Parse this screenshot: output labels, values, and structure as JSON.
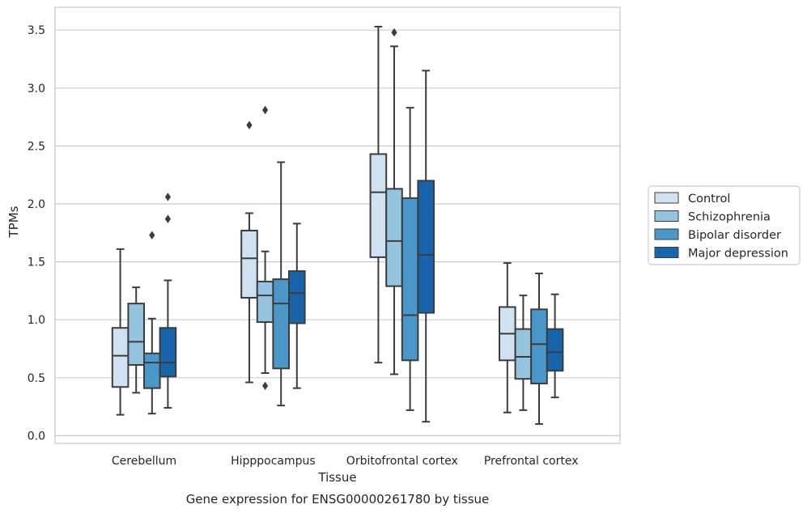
{
  "chart_data": {
    "type": "box",
    "title": "",
    "caption": "Gene expression for ENSG00000261780 by tissue",
    "xlabel": "Tissue",
    "ylabel": "TPMs",
    "ylim": [
      -0.06,
      3.7
    ],
    "yticks": [
      0.0,
      0.5,
      1.0,
      1.5,
      2.0,
      2.5,
      3.0,
      3.5
    ],
    "ytick_labels": [
      "0.0",
      "0.5",
      "1.0",
      "1.5",
      "2.0",
      "2.5",
      "3.0",
      "3.5"
    ],
    "grid": "horizontal",
    "legend_position": "right",
    "categories": [
      "Cerebellum",
      "Hipppocampus",
      "Orbitofrontal cortex",
      "Prefrontal cortex"
    ],
    "series": [
      {
        "name": "Control",
        "color": "#d0e1f2",
        "boxes": [
          {
            "whislo": 0.18,
            "q1": 0.42,
            "med": 0.69,
            "q3": 0.93,
            "whishi": 1.61,
            "fliers": []
          },
          {
            "whislo": 0.46,
            "q1": 1.19,
            "med": 1.53,
            "q3": 1.77,
            "whishi": 1.92,
            "fliers": [
              2.68
            ]
          },
          {
            "whislo": 0.63,
            "q1": 1.54,
            "med": 2.1,
            "q3": 2.43,
            "whishi": 3.53,
            "fliers": []
          },
          {
            "whislo": 0.2,
            "q1": 0.65,
            "med": 0.88,
            "q3": 1.11,
            "whishi": 1.49,
            "fliers": []
          }
        ]
      },
      {
        "name": "Schizophrenia",
        "color": "#94c4df",
        "boxes": [
          {
            "whislo": 0.37,
            "q1": 0.61,
            "med": 0.81,
            "q3": 1.14,
            "whishi": 1.28,
            "fliers": []
          },
          {
            "whislo": 0.54,
            "q1": 0.98,
            "med": 1.21,
            "q3": 1.33,
            "whishi": 1.59,
            "fliers": [
              2.81,
              0.43
            ]
          },
          {
            "whislo": 0.53,
            "q1": 1.29,
            "med": 1.68,
            "q3": 2.13,
            "whishi": 3.36,
            "fliers": [
              3.48
            ]
          },
          {
            "whislo": 0.22,
            "q1": 0.49,
            "med": 0.68,
            "q3": 0.92,
            "whishi": 1.21,
            "fliers": []
          }
        ]
      },
      {
        "name": "Bipolar disorder",
        "color": "#4a98c9",
        "boxes": [
          {
            "whislo": 0.19,
            "q1": 0.41,
            "med": 0.63,
            "q3": 0.71,
            "whishi": 1.01,
            "fliers": [
              1.73
            ]
          },
          {
            "whislo": 0.26,
            "q1": 0.58,
            "med": 1.14,
            "q3": 1.35,
            "whishi": 2.36,
            "fliers": []
          },
          {
            "whislo": 0.22,
            "q1": 0.65,
            "med": 1.04,
            "q3": 2.05,
            "whishi": 2.83,
            "fliers": []
          },
          {
            "whislo": 0.1,
            "q1": 0.45,
            "med": 0.79,
            "q3": 1.09,
            "whishi": 1.4,
            "fliers": []
          }
        ]
      },
      {
        "name": "Major depression",
        "color": "#1764ab",
        "boxes": [
          {
            "whislo": 0.24,
            "q1": 0.51,
            "med": 0.63,
            "q3": 0.93,
            "whishi": 1.34,
            "fliers": [
              2.06,
              1.87
            ]
          },
          {
            "whislo": 0.41,
            "q1": 0.97,
            "med": 1.23,
            "q3": 1.42,
            "whishi": 1.83,
            "fliers": []
          },
          {
            "whislo": 0.12,
            "q1": 1.06,
            "med": 1.56,
            "q3": 2.2,
            "whishi": 3.15,
            "fliers": []
          },
          {
            "whislo": 0.33,
            "q1": 0.56,
            "med": 0.72,
            "q3": 0.92,
            "whishi": 1.22,
            "fliers": []
          }
        ]
      }
    ],
    "colors": {
      "edge": "#3c3c3c",
      "grid": "#cccccc",
      "frame": "#cccccc"
    }
  }
}
